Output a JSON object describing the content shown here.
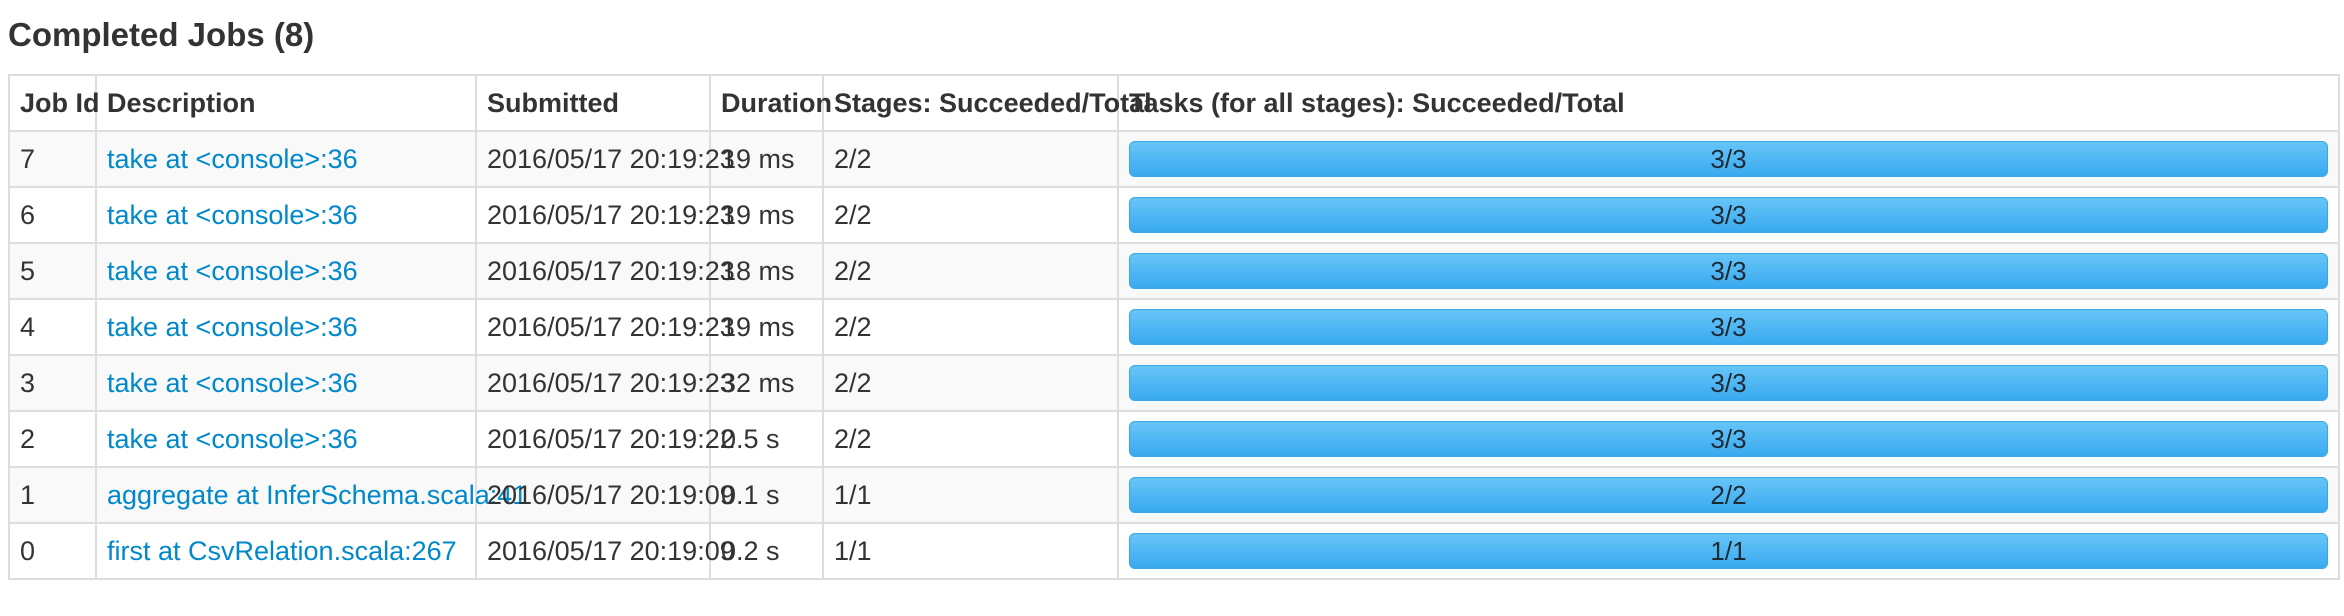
{
  "section": {
    "title": "Completed Jobs (8)"
  },
  "table": {
    "headers": [
      "Job Id",
      "Description",
      "Submitted",
      "Duration",
      "Stages: Succeeded/Total",
      "Tasks (for all stages): Succeeded/Total"
    ],
    "rows": [
      {
        "job_id": "7",
        "description": "take at <console>:36",
        "submitted": "2016/05/17 20:19:23",
        "duration": "19 ms",
        "stages": "2/2",
        "tasks": "3/3",
        "tasks_fraction": 1.0
      },
      {
        "job_id": "6",
        "description": "take at <console>:36",
        "submitted": "2016/05/17 20:19:23",
        "duration": "19 ms",
        "stages": "2/2",
        "tasks": "3/3",
        "tasks_fraction": 1.0
      },
      {
        "job_id": "5",
        "description": "take at <console>:36",
        "submitted": "2016/05/17 20:19:23",
        "duration": "18 ms",
        "stages": "2/2",
        "tasks": "3/3",
        "tasks_fraction": 1.0
      },
      {
        "job_id": "4",
        "description": "take at <console>:36",
        "submitted": "2016/05/17 20:19:23",
        "duration": "19 ms",
        "stages": "2/2",
        "tasks": "3/3",
        "tasks_fraction": 1.0
      },
      {
        "job_id": "3",
        "description": "take at <console>:36",
        "submitted": "2016/05/17 20:19:23",
        "duration": "32 ms",
        "stages": "2/2",
        "tasks": "3/3",
        "tasks_fraction": 1.0
      },
      {
        "job_id": "2",
        "description": "take at <console>:36",
        "submitted": "2016/05/17 20:19:22",
        "duration": "0.5 s",
        "stages": "2/2",
        "tasks": "3/3",
        "tasks_fraction": 1.0
      },
      {
        "job_id": "1",
        "description": "aggregate at InferSchema.scala:41",
        "submitted": "2016/05/17 20:19:09",
        "duration": "0.1 s",
        "stages": "1/1",
        "tasks": "2/2",
        "tasks_fraction": 1.0
      },
      {
        "job_id": "0",
        "description": "first at CsvRelation.scala:267",
        "submitted": "2016/05/17 20:19:09",
        "duration": "0.2 s",
        "stages": "1/1",
        "tasks": "1/1",
        "tasks_fraction": 1.0
      }
    ]
  },
  "colors": {
    "link": "#0088cc",
    "progress_fill": "#4cb5f5",
    "text": "#333333",
    "row_stripe": "#f9f9f9",
    "border": "#dddddd"
  }
}
